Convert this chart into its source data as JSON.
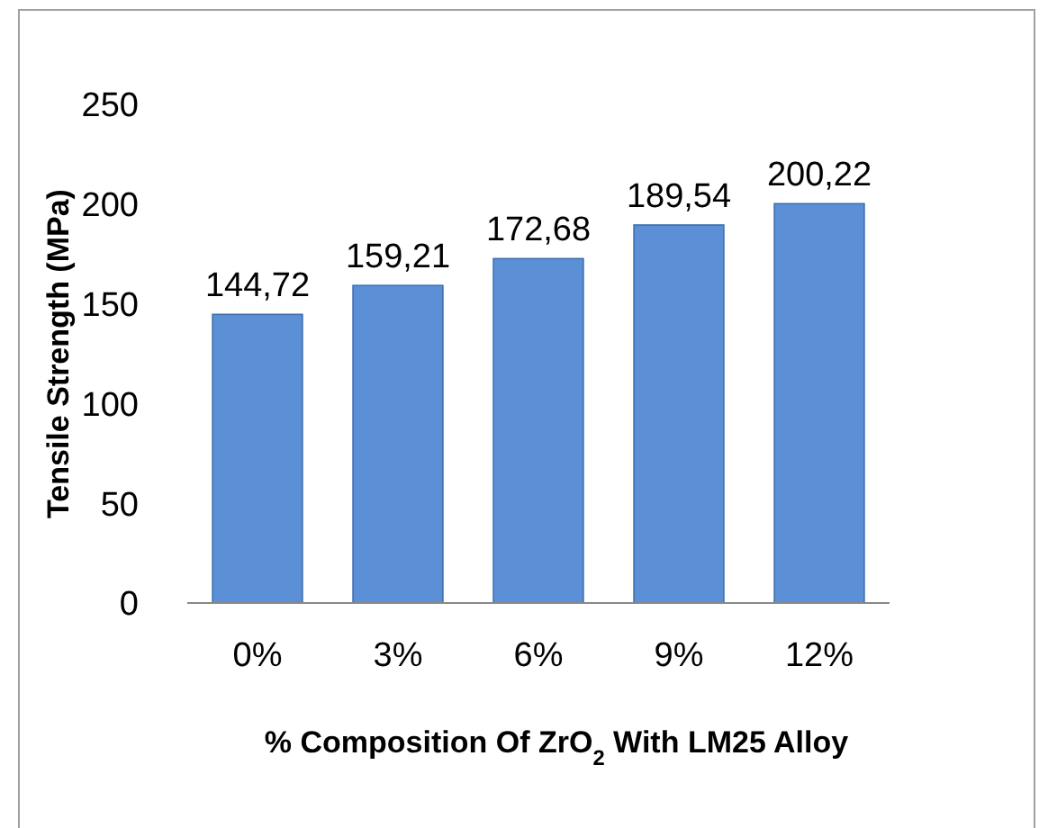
{
  "chart_data": {
    "type": "bar",
    "xlabel": "% Composition Of ZrO$_{2}$ With LM25 Alloy",
    "ylabel": "Tensile Strength (MPa)",
    "categories": [
      "0%",
      "3%",
      "6%",
      "9%",
      "12%"
    ],
    "values": [
      144.72,
      159.21,
      172.68,
      189.54,
      200.22
    ],
    "value_labels": [
      "144,72",
      "159,21",
      "172,68",
      "189,54",
      "200,22"
    ],
    "color": "#5b8fd6",
    "ylim": [
      0,
      250
    ],
    "yticks": [
      0,
      50,
      100,
      150,
      200,
      250
    ],
    "grid": false
  }
}
